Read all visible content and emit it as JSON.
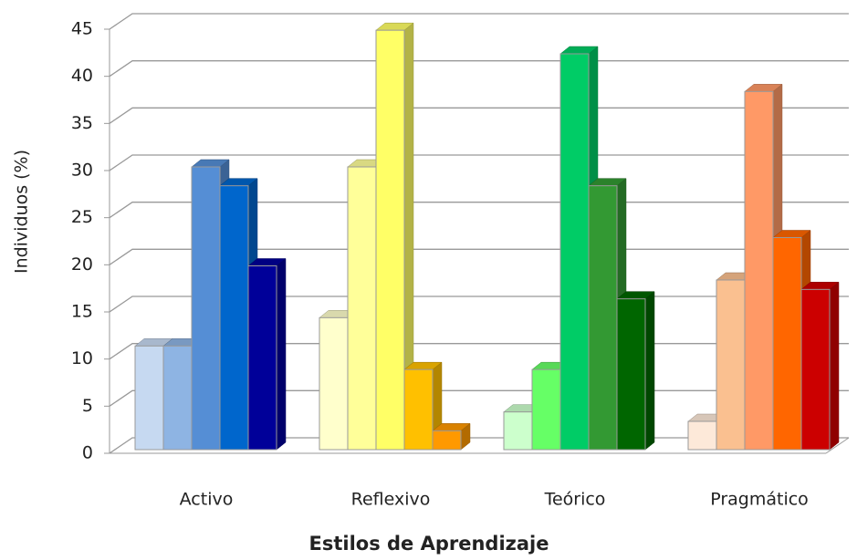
{
  "chart_data": {
    "type": "bar3d",
    "x_label": "Estilos de Aprendizaje",
    "y_label": "Individuos (%)",
    "categories": [
      "Activo",
      "Reflexivo",
      "Teórico",
      "Pragmático"
    ],
    "series": [
      {
        "colors": [
          "#c6d9f1",
          "#ffffcc",
          "#ccffcc",
          "#fde9d9"
        ],
        "values": [
          11,
          14,
          4,
          3
        ]
      },
      {
        "colors": [
          "#8eb4e3",
          "#ffff99",
          "#66ff66",
          "#fac090"
        ],
        "values": [
          11,
          30,
          8.5,
          18
        ]
      },
      {
        "colors": [
          "#558ed5",
          "#ffff66",
          "#00cc66",
          "#ff9966"
        ],
        "values": [
          30,
          44.5,
          42,
          38
        ]
      },
      {
        "colors": [
          "#0066cc",
          "#ffc000",
          "#339933",
          "#ff6600"
        ],
        "values": [
          28,
          8.5,
          28,
          22.5
        ]
      },
      {
        "colors": [
          "#000099",
          "#ff9900",
          "#006600",
          "#cc0000"
        ],
        "values": [
          19.5,
          2,
          16,
          17
        ]
      }
    ],
    "ylim": [
      0,
      45
    ],
    "yticks": [
      0,
      5,
      10,
      15,
      20,
      25,
      30,
      35,
      40,
      45
    ],
    "grid": true
  }
}
